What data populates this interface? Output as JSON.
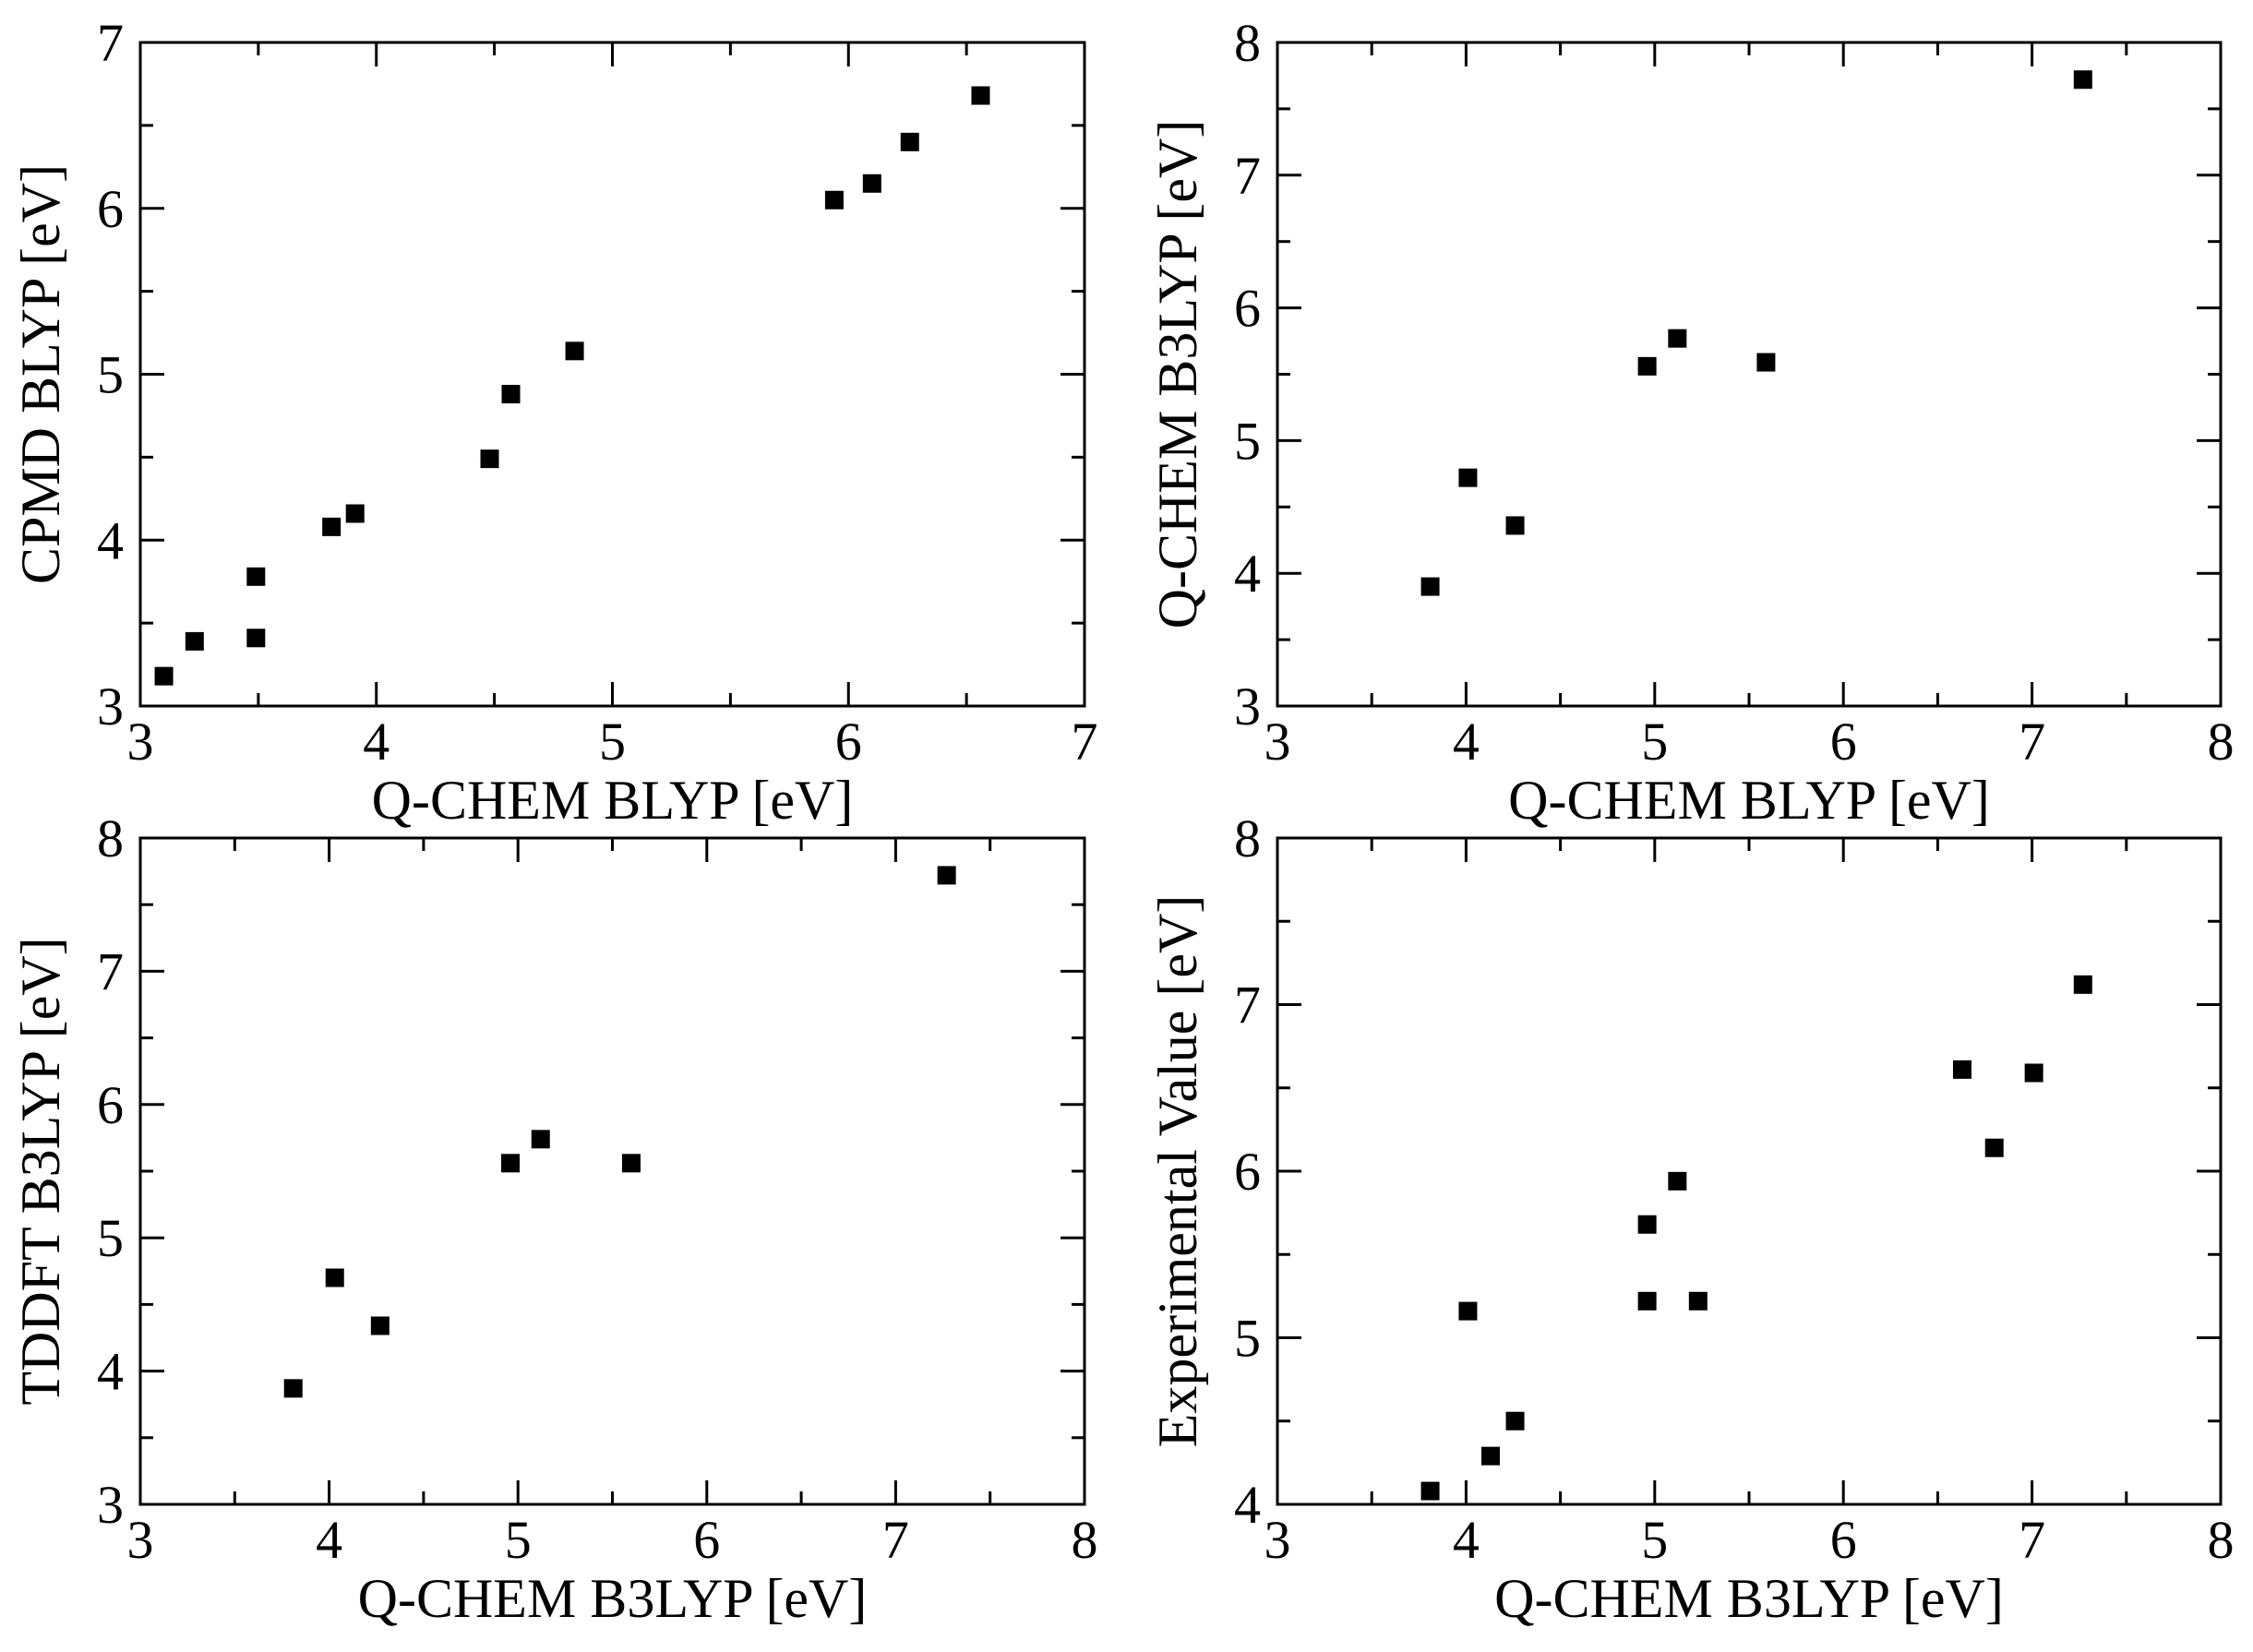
{
  "chart_data": [
    {
      "type": "scatter",
      "title": "",
      "xlabel": "Q-CHEM BLYP [eV]",
      "ylabel": "CPMD BLYP [eV]",
      "xlim": [
        3,
        7
      ],
      "ylim": [
        3,
        7
      ],
      "xticks": [
        3,
        4,
        5,
        6,
        7
      ],
      "yticks": [
        3,
        4,
        5,
        6,
        7
      ],
      "grid": false,
      "marker": "square",
      "color": "#000000",
      "series": [
        {
          "points": [
            [
              3.1,
              3.18
            ],
            [
              3.23,
              3.39
            ],
            [
              3.49,
              3.41
            ],
            [
              3.49,
              3.78
            ],
            [
              3.81,
              4.08
            ],
            [
              3.91,
              4.16
            ],
            [
              4.48,
              4.49
            ],
            [
              4.57,
              4.88
            ],
            [
              4.84,
              5.14
            ],
            [
              5.94,
              6.05
            ],
            [
              6.1,
              6.15
            ],
            [
              6.26,
              6.4
            ],
            [
              6.56,
              6.68
            ]
          ]
        }
      ]
    },
    {
      "type": "scatter",
      "title": "",
      "xlabel": "Q-CHEM BLYP [eV]",
      "ylabel": "Q-CHEM B3LYP [eV]",
      "xlim": [
        3,
        8
      ],
      "ylim": [
        3,
        8
      ],
      "xticks": [
        3,
        4,
        5,
        6,
        7,
        8
      ],
      "yticks": [
        3,
        4,
        5,
        6,
        7,
        8
      ],
      "grid": false,
      "marker": "square",
      "color": "#000000",
      "series": [
        {
          "points": [
            [
              3.81,
              3.9
            ],
            [
              4.01,
              4.72
            ],
            [
              4.26,
              4.36
            ],
            [
              4.96,
              5.56
            ],
            [
              5.12,
              5.77
            ],
            [
              5.59,
              5.59
            ],
            [
              7.27,
              7.72
            ]
          ]
        }
      ]
    },
    {
      "type": "scatter",
      "title": "",
      "xlabel": "Q-CHEM B3LYP [eV]",
      "ylabel": "TDDFT B3LYP [eV]",
      "xlim": [
        3,
        8
      ],
      "ylim": [
        3,
        8
      ],
      "xticks": [
        3,
        4,
        5,
        6,
        7,
        8
      ],
      "yticks": [
        3,
        4,
        5,
        6,
        7,
        8
      ],
      "grid": false,
      "marker": "square",
      "color": "#000000",
      "series": [
        {
          "points": [
            [
              3.81,
              3.87
            ],
            [
              4.03,
              4.7
            ],
            [
              4.27,
              4.34
            ],
            [
              4.96,
              5.56
            ],
            [
              5.12,
              5.74
            ],
            [
              5.6,
              5.56
            ],
            [
              7.27,
              7.72
            ]
          ]
        }
      ]
    },
    {
      "type": "scatter",
      "title": "",
      "xlabel": "Q-CHEM B3LYP [eV]",
      "ylabel": "Experimental Value [eV]",
      "xlim": [
        3,
        8
      ],
      "ylim": [
        4,
        8
      ],
      "xticks": [
        3,
        4,
        5,
        6,
        7,
        8
      ],
      "yticks": [
        4,
        5,
        6,
        7,
        8
      ],
      "grid": false,
      "marker": "square",
      "color": "#000000",
      "series": [
        {
          "points": [
            [
              3.81,
              4.08
            ],
            [
              4.01,
              5.16
            ],
            [
              4.13,
              4.29
            ],
            [
              4.26,
              4.5
            ],
            [
              4.96,
              5.22
            ],
            [
              4.96,
              5.68
            ],
            [
              5.12,
              5.94
            ],
            [
              5.23,
              5.22
            ],
            [
              6.63,
              6.61
            ],
            [
              6.8,
              6.14
            ],
            [
              7.01,
              6.59
            ],
            [
              7.27,
              7.12
            ]
          ]
        }
      ]
    }
  ]
}
